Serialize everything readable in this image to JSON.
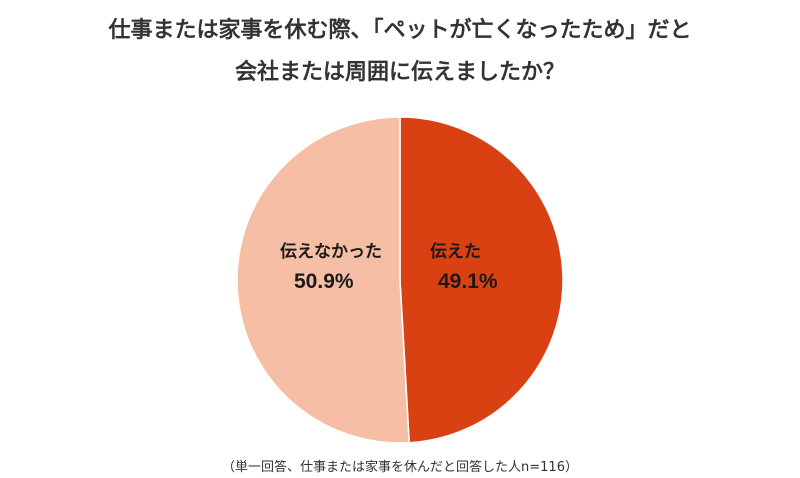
{
  "chart_data": {
    "type": "pie",
    "title_line1": "仕事または家事を休む際、「ペットが亡くなったため」だと",
    "title_line2": "会社または周囲に伝えましたか？",
    "slices": [
      {
        "label": "伝えた",
        "value": 49.1,
        "display": "49.1%",
        "color": "#d94012"
      },
      {
        "label": "伝えなかった",
        "value": 50.9,
        "display": "50.9%",
        "color": "#f6bea4"
      }
    ],
    "note": "（単一回答、仕事または家事を休んだと回答した人n=116）"
  }
}
